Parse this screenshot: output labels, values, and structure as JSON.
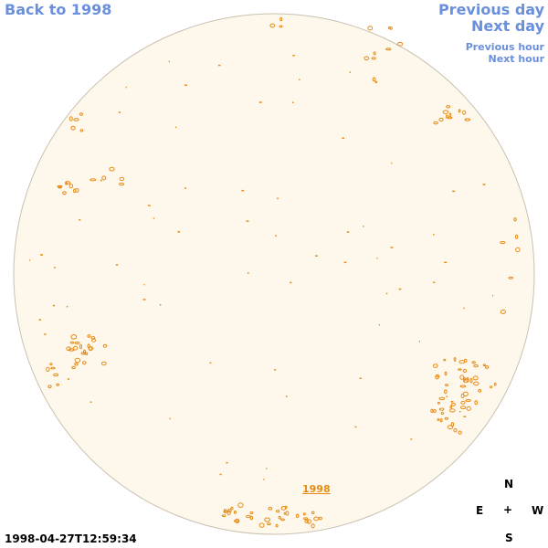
{
  "nav": {
    "back": "Back to 1998",
    "previous_day": "Previous day",
    "next_day": "Next day",
    "previous_hour": "Previous hour",
    "next_hour": "Next hour"
  },
  "disk": {
    "fill_color": "#fdf8eb",
    "border_color": "#c9c1b0",
    "contour_color": "#e88a14",
    "year_label": "1998"
  },
  "compass": {
    "north": "N",
    "east": "E",
    "center": "+",
    "west": "W",
    "south": "S"
  },
  "timestamp": "1998-04-27T12:59:34",
  "colors": {
    "link": "#6a8fdc",
    "contour": "#e88a14"
  }
}
